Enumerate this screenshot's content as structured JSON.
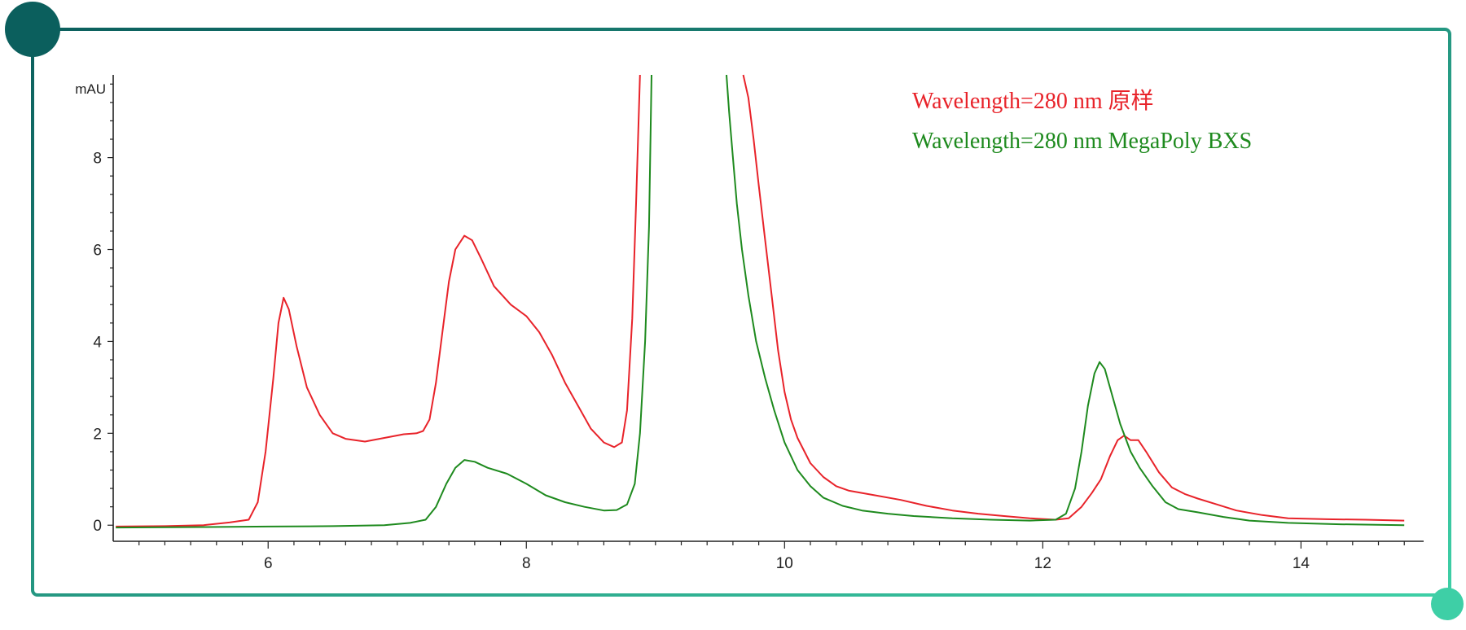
{
  "colors": {
    "frame_start": "#0b5f5d",
    "frame_end": "#3ecfa6",
    "red_series": "#e8232a",
    "green_series": "#1e8a1e",
    "axis": "#222222"
  },
  "chart_data": {
    "type": "line",
    "title": "",
    "xlabel": "",
    "ylabel": "mAU",
    "xlim": [
      4.8,
      14.95
    ],
    "ylim": [
      -0.35,
      9.8
    ],
    "xticks": [
      6,
      8,
      10,
      12,
      14
    ],
    "yticks": [
      0,
      2,
      4,
      6,
      8
    ],
    "xtick_labels": [
      "6",
      "8",
      "10",
      "12",
      "14"
    ],
    "ytick_labels": [
      "0",
      "2",
      "4",
      "6",
      "8"
    ],
    "grid": false,
    "legend_position": "top-right",
    "series": [
      {
        "name": "Wavelength=280 nm 原样",
        "color": "#e8232a",
        "points": [
          [
            4.82,
            -0.03
          ],
          [
            5.2,
            -0.02
          ],
          [
            5.5,
            0.0
          ],
          [
            5.7,
            0.06
          ],
          [
            5.85,
            0.12
          ],
          [
            5.92,
            0.5
          ],
          [
            5.98,
            1.6
          ],
          [
            6.04,
            3.2
          ],
          [
            6.08,
            4.4
          ],
          [
            6.12,
            4.95
          ],
          [
            6.16,
            4.7
          ],
          [
            6.22,
            3.9
          ],
          [
            6.3,
            3.0
          ],
          [
            6.4,
            2.4
          ],
          [
            6.5,
            2.0
          ],
          [
            6.6,
            1.88
          ],
          [
            6.75,
            1.82
          ],
          [
            6.9,
            1.9
          ],
          [
            7.05,
            1.98
          ],
          [
            7.15,
            2.0
          ],
          [
            7.2,
            2.05
          ],
          [
            7.25,
            2.3
          ],
          [
            7.3,
            3.1
          ],
          [
            7.35,
            4.2
          ],
          [
            7.4,
            5.3
          ],
          [
            7.45,
            6.0
          ],
          [
            7.52,
            6.3
          ],
          [
            7.58,
            6.2
          ],
          [
            7.65,
            5.8
          ],
          [
            7.75,
            5.2
          ],
          [
            7.88,
            4.8
          ],
          [
            8.0,
            4.55
          ],
          [
            8.1,
            4.2
          ],
          [
            8.2,
            3.7
          ],
          [
            8.3,
            3.1
          ],
          [
            8.4,
            2.6
          ],
          [
            8.5,
            2.1
          ],
          [
            8.6,
            1.8
          ],
          [
            8.68,
            1.7
          ],
          [
            8.74,
            1.8
          ],
          [
            8.78,
            2.5
          ],
          [
            8.82,
            4.5
          ],
          [
            8.85,
            7.0
          ],
          [
            8.88,
            9.8
          ]
        ],
        "points_b": [
          [
            9.68,
            9.8
          ],
          [
            9.72,
            9.3
          ],
          [
            9.76,
            8.4
          ],
          [
            9.8,
            7.4
          ],
          [
            9.85,
            6.2
          ],
          [
            9.9,
            5.0
          ],
          [
            9.95,
            3.8
          ],
          [
            10.0,
            2.9
          ],
          [
            10.05,
            2.3
          ],
          [
            10.1,
            1.9
          ],
          [
            10.2,
            1.35
          ],
          [
            10.3,
            1.05
          ],
          [
            10.4,
            0.85
          ],
          [
            10.5,
            0.75
          ],
          [
            10.7,
            0.65
          ],
          [
            10.9,
            0.55
          ],
          [
            11.1,
            0.42
          ],
          [
            11.3,
            0.32
          ],
          [
            11.5,
            0.25
          ],
          [
            11.7,
            0.2
          ],
          [
            11.9,
            0.15
          ],
          [
            12.1,
            0.12
          ],
          [
            12.2,
            0.15
          ],
          [
            12.3,
            0.4
          ],
          [
            12.38,
            0.7
          ],
          [
            12.45,
            1.0
          ],
          [
            12.52,
            1.5
          ],
          [
            12.58,
            1.85
          ],
          [
            12.63,
            1.95
          ],
          [
            12.68,
            1.85
          ],
          [
            12.74,
            1.85
          ],
          [
            12.8,
            1.6
          ],
          [
            12.9,
            1.15
          ],
          [
            13.0,
            0.82
          ],
          [
            13.1,
            0.68
          ],
          [
            13.2,
            0.58
          ],
          [
            13.35,
            0.45
          ],
          [
            13.5,
            0.32
          ],
          [
            13.7,
            0.22
          ],
          [
            13.9,
            0.15
          ],
          [
            14.2,
            0.13
          ],
          [
            14.5,
            0.12
          ],
          [
            14.8,
            0.1
          ]
        ]
      },
      {
        "name": "Wavelength=280 nm MegaPoly BXS",
        "color": "#1e8a1e",
        "points": [
          [
            4.82,
            -0.05
          ],
          [
            5.5,
            -0.04
          ],
          [
            6.0,
            -0.03
          ],
          [
            6.5,
            -0.02
          ],
          [
            6.9,
            0.0
          ],
          [
            7.1,
            0.05
          ],
          [
            7.22,
            0.12
          ],
          [
            7.3,
            0.4
          ],
          [
            7.38,
            0.9
          ],
          [
            7.45,
            1.25
          ],
          [
            7.52,
            1.42
          ],
          [
            7.6,
            1.38
          ],
          [
            7.7,
            1.25
          ],
          [
            7.85,
            1.12
          ],
          [
            8.0,
            0.9
          ],
          [
            8.15,
            0.65
          ],
          [
            8.3,
            0.5
          ],
          [
            8.45,
            0.4
          ],
          [
            8.6,
            0.32
          ],
          [
            8.7,
            0.33
          ],
          [
            8.78,
            0.45
          ],
          [
            8.84,
            0.9
          ],
          [
            8.88,
            2.0
          ],
          [
            8.92,
            4.0
          ],
          [
            8.95,
            6.5
          ],
          [
            8.97,
            9.8
          ]
        ],
        "points_b": [
          [
            9.55,
            9.8
          ],
          [
            9.57,
            9.0
          ],
          [
            9.6,
            8.0
          ],
          [
            9.63,
            7.0
          ],
          [
            9.67,
            6.0
          ],
          [
            9.72,
            5.0
          ],
          [
            9.78,
            4.0
          ],
          [
            9.85,
            3.2
          ],
          [
            9.92,
            2.5
          ],
          [
            10.0,
            1.8
          ],
          [
            10.1,
            1.2
          ],
          [
            10.2,
            0.85
          ],
          [
            10.3,
            0.6
          ],
          [
            10.45,
            0.42
          ],
          [
            10.6,
            0.32
          ],
          [
            10.8,
            0.25
          ],
          [
            11.0,
            0.2
          ],
          [
            11.3,
            0.15
          ],
          [
            11.6,
            0.12
          ],
          [
            11.9,
            0.1
          ],
          [
            12.1,
            0.12
          ],
          [
            12.18,
            0.25
          ],
          [
            12.25,
            0.8
          ],
          [
            12.3,
            1.6
          ],
          [
            12.35,
            2.6
          ],
          [
            12.4,
            3.3
          ],
          [
            12.44,
            3.55
          ],
          [
            12.48,
            3.4
          ],
          [
            12.53,
            2.9
          ],
          [
            12.6,
            2.2
          ],
          [
            12.68,
            1.6
          ],
          [
            12.75,
            1.25
          ],
          [
            12.85,
            0.85
          ],
          [
            12.95,
            0.5
          ],
          [
            13.05,
            0.35
          ],
          [
            13.2,
            0.28
          ],
          [
            13.4,
            0.18
          ],
          [
            13.6,
            0.1
          ],
          [
            13.9,
            0.05
          ],
          [
            14.3,
            0.02
          ],
          [
            14.8,
            0.0
          ]
        ]
      }
    ],
    "legend": [
      {
        "text": "Wavelength=280 nm 原样",
        "color": "#e8232a"
      },
      {
        "text": "Wavelength=280 nm MegaPoly BXS",
        "color": "#1e8a1e"
      }
    ]
  }
}
